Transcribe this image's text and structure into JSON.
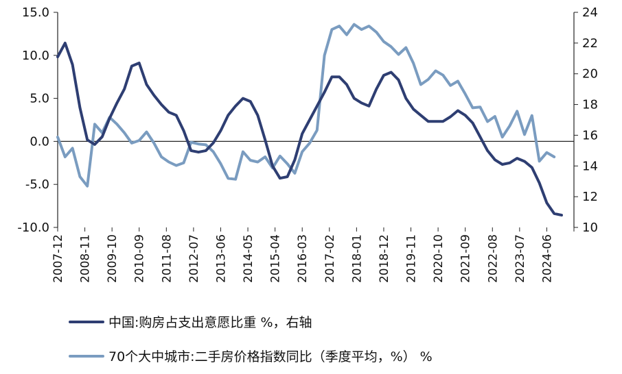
{
  "chart_data": {
    "type": "line",
    "left_axis": {
      "ylim": [
        -10,
        15
      ],
      "ticks": [
        "-10.0",
        "-5.0",
        "0.0",
        "5.0",
        "10.0",
        "15.0"
      ]
    },
    "right_axis": {
      "ylim": [
        10,
        24
      ],
      "ticks": [
        "10",
        "12",
        "14",
        "16",
        "18",
        "20",
        "22",
        "24"
      ]
    },
    "x_start": "2007-12",
    "x_tick_labels": [
      "2007-12",
      "2008-11",
      "2009-10",
      "2010-09",
      "2011-08",
      "2012-07",
      "2013-06",
      "2014-05",
      "2015-04",
      "2016-03",
      "2017-02",
      "2018-01",
      "2018-12",
      "2019-11",
      "2020-10",
      "2021-09",
      "2022-08",
      "2023-07",
      "2024-06"
    ],
    "series": [
      {
        "name": "70个大中城市:二手房价格指数同比（季度平均，%） %",
        "axis": "left",
        "color": "#7a9cc0",
        "points": [
          [
            "2007-12",
            0.5
          ],
          [
            "2008-03",
            -1.8
          ],
          [
            "2008-06",
            -0.8
          ],
          [
            "2008-09",
            -4.1
          ],
          [
            "2008-12",
            -5.2
          ],
          [
            "2009-03",
            2.0
          ],
          [
            "2009-06",
            1.0
          ],
          [
            "2009-09",
            2.8
          ],
          [
            "2009-12",
            2.0
          ],
          [
            "2010-03",
            1.0
          ],
          [
            "2010-06",
            -0.2
          ],
          [
            "2010-09",
            0.1
          ],
          [
            "2010-12",
            1.1
          ],
          [
            "2011-03",
            -0.2
          ],
          [
            "2011-06",
            -1.8
          ],
          [
            "2011-09",
            -2.4
          ],
          [
            "2011-12",
            -2.8
          ],
          [
            "2012-03",
            -2.5
          ],
          [
            "2012-06",
            -0.1
          ],
          [
            "2012-09",
            -0.3
          ],
          [
            "2012-12",
            -0.4
          ],
          [
            "2013-03",
            -1.2
          ],
          [
            "2013-06",
            -2.6
          ],
          [
            "2013-09",
            -4.3
          ],
          [
            "2013-12",
            -4.4
          ],
          [
            "2014-03",
            -1.2
          ],
          [
            "2014-06",
            -2.2
          ],
          [
            "2014-09",
            -2.4
          ],
          [
            "2014-12",
            -1.8
          ],
          [
            "2015-03",
            -3.1
          ],
          [
            "2015-06",
            -1.7
          ],
          [
            "2015-09",
            -2.6
          ],
          [
            "2015-12",
            -3.7
          ],
          [
            "2016-03",
            -1.2
          ],
          [
            "2016-06",
            -0.2
          ],
          [
            "2016-09",
            1.3
          ],
          [
            "2016-12",
            10.0
          ],
          [
            "2017-03",
            13.0
          ],
          [
            "2017-06",
            13.4
          ],
          [
            "2017-09",
            12.4
          ],
          [
            "2017-12",
            13.6
          ],
          [
            "2018-03",
            13.0
          ],
          [
            "2018-06",
            13.4
          ],
          [
            "2018-09",
            12.7
          ],
          [
            "2018-12",
            11.6
          ],
          [
            "2019-03",
            11.0
          ],
          [
            "2019-06",
            10.1
          ],
          [
            "2019-09",
            10.9
          ],
          [
            "2019-12",
            9.1
          ],
          [
            "2020-03",
            6.6
          ],
          [
            "2020-06",
            7.2
          ],
          [
            "2020-09",
            8.2
          ],
          [
            "2020-12",
            7.7
          ],
          [
            "2021-03",
            6.5
          ],
          [
            "2021-06",
            7.0
          ],
          [
            "2021-09",
            5.5
          ],
          [
            "2021-12",
            3.9
          ],
          [
            "2022-03",
            4.0
          ],
          [
            "2022-06",
            2.3
          ],
          [
            "2022-09",
            2.9
          ],
          [
            "2022-12",
            0.5
          ],
          [
            "2023-03",
            1.8
          ],
          [
            "2023-06",
            3.5
          ],
          [
            "2023-09",
            0.8
          ],
          [
            "2023-12",
            3.0
          ],
          [
            "2024-03",
            -2.3
          ],
          [
            "2024-06",
            -1.3
          ],
          [
            "2024-09",
            -1.8
          ]
        ]
      },
      {
        "name": "中国:购房占支出意愿比重 %，右轴",
        "axis": "right",
        "color": "#2e3e72",
        "points": [
          [
            "2007-12",
            21.1
          ],
          [
            "2008-03",
            22.0
          ],
          [
            "2008-06",
            20.6
          ],
          [
            "2008-09",
            17.8
          ],
          [
            "2008-12",
            15.7
          ],
          [
            "2009-03",
            15.4
          ],
          [
            "2009-06",
            15.9
          ],
          [
            "2009-09",
            17.1
          ],
          [
            "2009-12",
            18.1
          ],
          [
            "2010-03",
            19.0
          ],
          [
            "2010-06",
            20.5
          ],
          [
            "2010-09",
            20.7
          ],
          [
            "2010-12",
            19.3
          ],
          [
            "2011-03",
            18.6
          ],
          [
            "2011-06",
            18.0
          ],
          [
            "2011-09",
            17.5
          ],
          [
            "2011-12",
            17.3
          ],
          [
            "2012-03",
            16.3
          ],
          [
            "2012-06",
            15.0
          ],
          [
            "2012-09",
            14.9
          ],
          [
            "2012-12",
            15.0
          ],
          [
            "2013-03",
            15.5
          ],
          [
            "2013-06",
            16.3
          ],
          [
            "2013-09",
            17.3
          ],
          [
            "2013-12",
            17.9
          ],
          [
            "2014-03",
            18.4
          ],
          [
            "2014-06",
            18.2
          ],
          [
            "2014-09",
            17.3
          ],
          [
            "2014-12",
            15.7
          ],
          [
            "2015-03",
            14.0
          ],
          [
            "2015-06",
            13.2
          ],
          [
            "2015-09",
            13.3
          ],
          [
            "2015-12",
            14.4
          ],
          [
            "2016-03",
            16.1
          ],
          [
            "2016-06",
            17.0
          ],
          [
            "2016-09",
            17.9
          ],
          [
            "2016-12",
            18.8
          ],
          [
            "2017-03",
            19.8
          ],
          [
            "2017-06",
            19.8
          ],
          [
            "2017-09",
            19.3
          ],
          [
            "2017-12",
            18.4
          ],
          [
            "2018-03",
            18.1
          ],
          [
            "2018-06",
            17.9
          ],
          [
            "2018-09",
            19.0
          ],
          [
            "2018-12",
            19.9
          ],
          [
            "2019-03",
            20.1
          ],
          [
            "2019-06",
            19.6
          ],
          [
            "2019-09",
            18.4
          ],
          [
            "2019-12",
            17.7
          ],
          [
            "2020-03",
            17.3
          ],
          [
            "2020-06",
            16.9
          ],
          [
            "2020-09",
            16.9
          ],
          [
            "2020-12",
            16.9
          ],
          [
            "2021-03",
            17.2
          ],
          [
            "2021-06",
            17.6
          ],
          [
            "2021-09",
            17.3
          ],
          [
            "2021-12",
            16.8
          ],
          [
            "2022-03",
            15.9
          ],
          [
            "2022-06",
            15.0
          ],
          [
            "2022-09",
            14.4
          ],
          [
            "2022-12",
            14.1
          ],
          [
            "2023-03",
            14.2
          ],
          [
            "2023-06",
            14.5
          ],
          [
            "2023-09",
            14.3
          ],
          [
            "2023-12",
            13.9
          ],
          [
            "2024-03",
            12.9
          ],
          [
            "2024-06",
            11.6
          ],
          [
            "2024-09",
            10.9
          ],
          [
            "2024-12",
            10.8
          ]
        ]
      }
    ],
    "legend": [
      {
        "label": "中国:购房占支出意愿比重 %，右轴",
        "color": "#2e3e72"
      },
      {
        "label": "70个大中城市:二手房价格指数同比（季度平均，%） %",
        "color": "#7a9cc0"
      }
    ],
    "legend_position": "bottom",
    "grid": false
  }
}
